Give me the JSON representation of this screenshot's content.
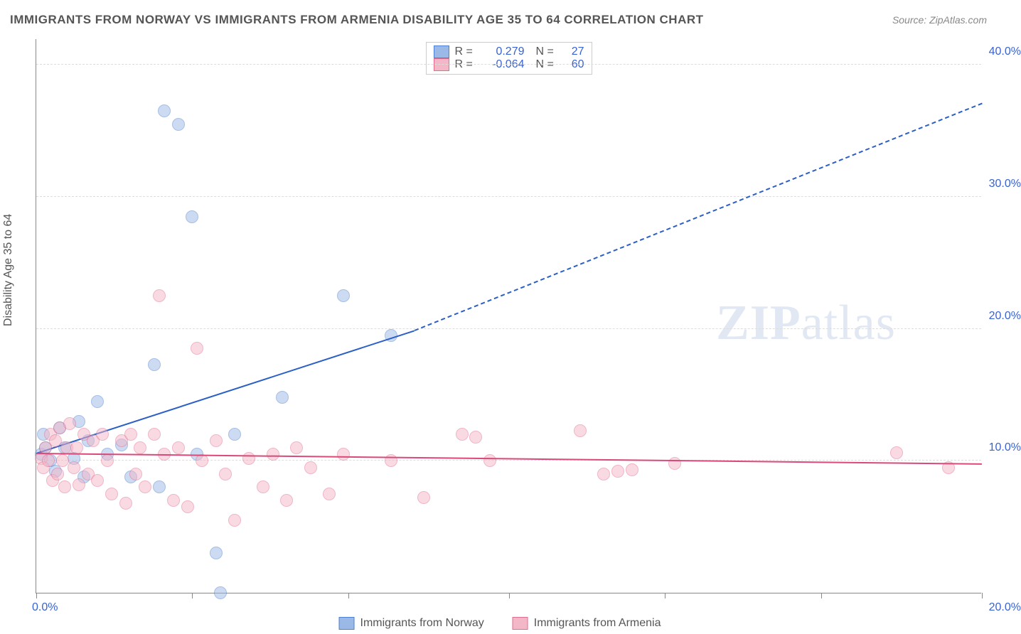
{
  "chart": {
    "type": "scatter",
    "title": "IMMIGRANTS FROM NORWAY VS IMMIGRANTS FROM ARMENIA DISABILITY AGE 35 TO 64 CORRELATION CHART",
    "source_label": "Source: ZipAtlas.com",
    "ylabel": "Disability Age 35 to 64",
    "watermark": "ZIPatlas",
    "background_color": "#ffffff",
    "grid_color": "#dddddd",
    "axis_color": "#888888",
    "title_fontsize": 17,
    "label_fontsize": 16,
    "xlim": [
      0,
      20
    ],
    "ylim": [
      0,
      42
    ],
    "xtick_positions": [
      0,
      3.3,
      6.6,
      10,
      13.3,
      16.6,
      20
    ],
    "xtick_labels": {
      "left": "0.0%",
      "right": "20.0%"
    },
    "ytick_positions": [
      10,
      20,
      30,
      40
    ],
    "ytick_labels": [
      "10.0%",
      "20.0%",
      "30.0%",
      "40.0%"
    ],
    "marker_radius": 9,
    "marker_opacity": 0.5,
    "series": [
      {
        "name": "Immigrants from Norway",
        "fill_color": "#9ab9e6",
        "stroke_color": "#4f7fd1",
        "trend_color": "#2b5fc6",
        "trend_width": 2,
        "r": "0.279",
        "n": "27",
        "trend": {
          "x1": 0,
          "y1": 10.5,
          "x2": 8,
          "y2": 19.8,
          "dashed_to_x": 20,
          "dashed_to_y": 37
        },
        "points": [
          [
            0.1,
            10.5
          ],
          [
            0.15,
            12
          ],
          [
            0.2,
            11
          ],
          [
            0.3,
            10
          ],
          [
            0.4,
            9.2
          ],
          [
            0.5,
            12.5
          ],
          [
            0.6,
            11
          ],
          [
            0.8,
            10.2
          ],
          [
            0.9,
            13
          ],
          [
            1.0,
            8.8
          ],
          [
            1.1,
            11.5
          ],
          [
            1.3,
            14.5
          ],
          [
            1.5,
            10.5
          ],
          [
            1.8,
            11.2
          ],
          [
            2.0,
            8.8
          ],
          [
            2.5,
            17.3
          ],
          [
            2.6,
            8.0
          ],
          [
            2.7,
            36.5
          ],
          [
            3.0,
            35.5
          ],
          [
            3.3,
            28.5
          ],
          [
            3.4,
            10.5
          ],
          [
            3.8,
            3.0
          ],
          [
            3.9,
            0.0
          ],
          [
            4.2,
            12.0
          ],
          [
            5.2,
            14.8
          ],
          [
            6.5,
            22.5
          ],
          [
            7.5,
            19.5
          ]
        ]
      },
      {
        "name": "Immigrants from Armenia",
        "fill_color": "#f4b7c8",
        "stroke_color": "#e26d8f",
        "trend_color": "#d94a78",
        "trend_width": 2,
        "r": "-0.064",
        "n": "60",
        "trend": {
          "x1": 0,
          "y1": 10.5,
          "x2": 20,
          "y2": 9.7
        },
        "points": [
          [
            0.1,
            10.2
          ],
          [
            0.15,
            9.5
          ],
          [
            0.2,
            11
          ],
          [
            0.25,
            10
          ],
          [
            0.3,
            12
          ],
          [
            0.35,
            8.5
          ],
          [
            0.4,
            11.5
          ],
          [
            0.45,
            9
          ],
          [
            0.5,
            12.5
          ],
          [
            0.55,
            10
          ],
          [
            0.6,
            8
          ],
          [
            0.65,
            11
          ],
          [
            0.7,
            12.8
          ],
          [
            0.8,
            9.5
          ],
          [
            0.85,
            11
          ],
          [
            0.9,
            8.2
          ],
          [
            1.0,
            12
          ],
          [
            1.1,
            9
          ],
          [
            1.2,
            11.5
          ],
          [
            1.3,
            8.5
          ],
          [
            1.4,
            12
          ],
          [
            1.5,
            10
          ],
          [
            1.6,
            7.5
          ],
          [
            1.8,
            11.5
          ],
          [
            1.9,
            6.8
          ],
          [
            2.0,
            12
          ],
          [
            2.1,
            9
          ],
          [
            2.2,
            11
          ],
          [
            2.3,
            8
          ],
          [
            2.5,
            12
          ],
          [
            2.6,
            22.5
          ],
          [
            2.7,
            10.5
          ],
          [
            2.9,
            7
          ],
          [
            3.0,
            11
          ],
          [
            3.2,
            6.5
          ],
          [
            3.4,
            18.5
          ],
          [
            3.5,
            10
          ],
          [
            3.8,
            11.5
          ],
          [
            4.0,
            9
          ],
          [
            4.2,
            5.5
          ],
          [
            4.5,
            10.2
          ],
          [
            4.8,
            8
          ],
          [
            5.0,
            10.5
          ],
          [
            5.3,
            7
          ],
          [
            5.5,
            11
          ],
          [
            5.8,
            9.5
          ],
          [
            6.2,
            7.5
          ],
          [
            6.5,
            10.5
          ],
          [
            7.5,
            10
          ],
          [
            8.2,
            7.2
          ],
          [
            9.0,
            12
          ],
          [
            9.3,
            11.8
          ],
          [
            9.6,
            10
          ],
          [
            11.5,
            12.3
          ],
          [
            12.0,
            9
          ],
          [
            12.3,
            9.2
          ],
          [
            12.6,
            9.3
          ],
          [
            13.5,
            9.8
          ],
          [
            18.2,
            10.6
          ],
          [
            19.3,
            9.5
          ]
        ]
      }
    ],
    "legend_top": {
      "r_label": "R =",
      "n_label": "N ="
    }
  }
}
